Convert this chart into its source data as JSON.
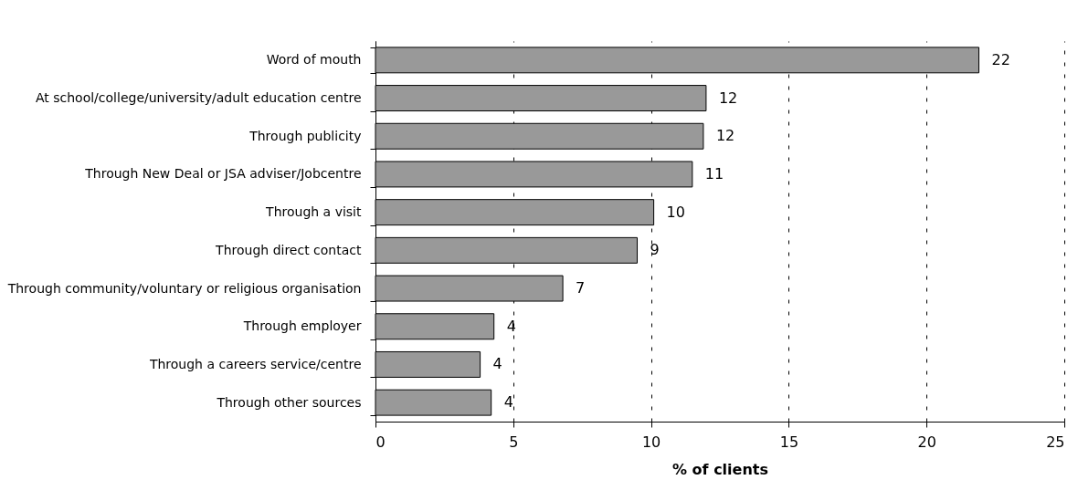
{
  "chart_data": {
    "type": "bar",
    "orientation": "horizontal",
    "xlabel": "% of clients",
    "categories": [
      "Word of mouth",
      "At school/college/university/adult education centre",
      "Through publicity",
      "Through New Deal or JSA adviser/Jobcentre",
      "Through a visit",
      "Through direct contact",
      "Through community/voluntary or religious organisation",
      "Through employer",
      "Through a careers service/centre",
      "Through other sources"
    ],
    "values": [
      21.9,
      12.0,
      11.9,
      11.5,
      10.1,
      9.5,
      6.8,
      4.3,
      3.8,
      4.2
    ],
    "value_labels": [
      "22",
      "12",
      "12",
      "11",
      "10",
      "9",
      "7",
      "4",
      "4",
      "4"
    ],
    "color": "#999999",
    "xlim": [
      0,
      25
    ],
    "xticks": [
      0,
      5,
      10,
      15,
      20,
      25
    ],
    "grid": "x"
  }
}
